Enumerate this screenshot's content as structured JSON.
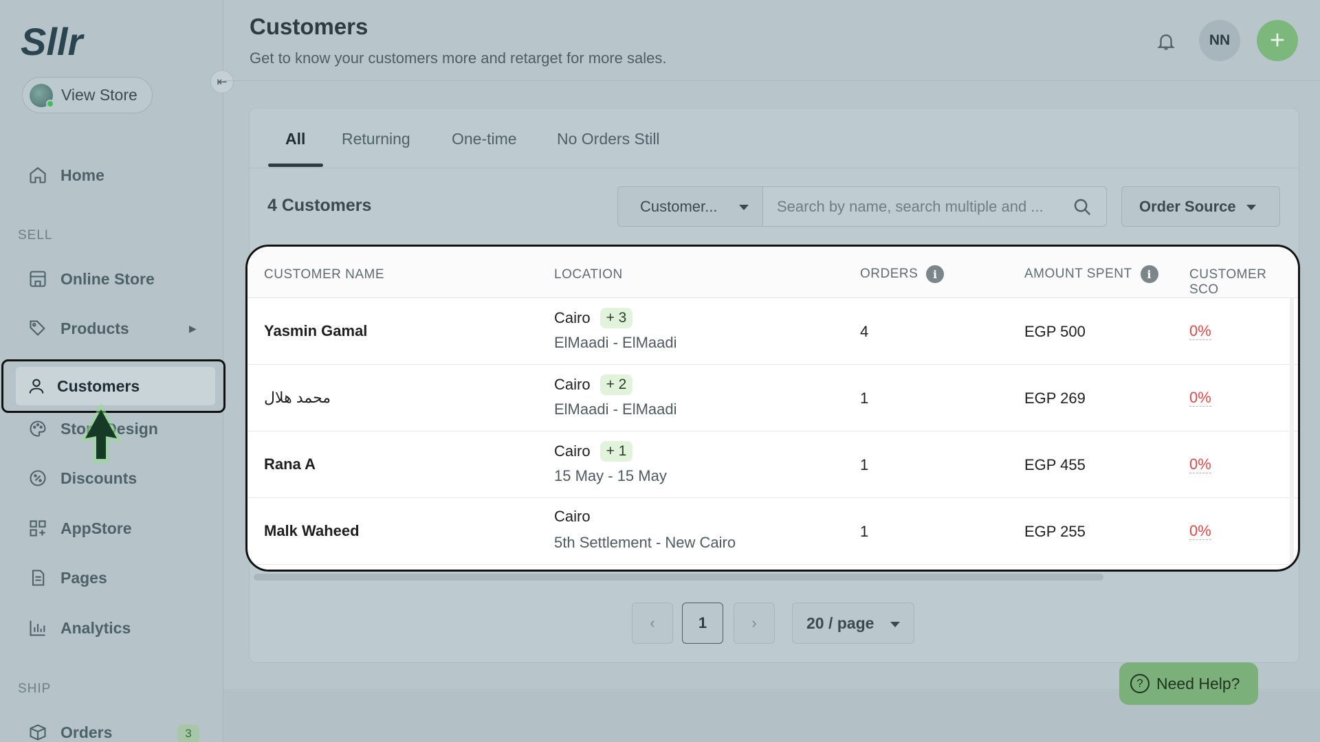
{
  "brand": {
    "logo_text": "Sllr"
  },
  "sidebar": {
    "view_store_label": "View Store",
    "sections": {
      "sell": "SELL",
      "ship": "SHIP"
    },
    "items": [
      {
        "label": "Home",
        "icon": "home-icon"
      },
      {
        "label": "Online Store",
        "icon": "store-icon"
      },
      {
        "label": "Products",
        "icon": "tag-icon"
      },
      {
        "label": "Customers",
        "icon": "user-icon",
        "active": true
      },
      {
        "label": "Store Design",
        "icon": "palette-icon"
      },
      {
        "label": "Discounts",
        "icon": "discount-icon"
      },
      {
        "label": "AppStore",
        "icon": "apps-icon"
      },
      {
        "label": "Pages",
        "icon": "page-icon"
      },
      {
        "label": "Analytics",
        "icon": "chart-icon"
      },
      {
        "label": "Orders",
        "icon": "box-icon",
        "badge": "3"
      }
    ]
  },
  "header": {
    "title": "Customers",
    "subtitle": "Get to know your customers more and retarget for more sales.",
    "avatar_initials": "NN"
  },
  "tabs": [
    "All",
    "Returning",
    "One-time",
    "No Orders Still"
  ],
  "toolbar": {
    "count_label": "4 Customers",
    "filter_value": "Customer...",
    "search_placeholder": "Search by name, search multiple and ...",
    "order_source_label": "Order Source"
  },
  "table": {
    "columns": [
      "CUSTOMER NAME",
      "LOCATION",
      "ORDERS",
      "AMOUNT SPENT",
      "CUSTOMER SCO"
    ],
    "rows": [
      {
        "name": "Yasmin Gamal",
        "city": "Cairo",
        "more": "+ 3",
        "area": "ElMaadi - ElMaadi",
        "orders": "4",
        "amount": "EGP 500",
        "score": "0%"
      },
      {
        "name": "محمد هلال",
        "city": "Cairo",
        "more": "+ 2",
        "area": "ElMaadi - ElMaadi",
        "orders": "1",
        "amount": "EGP 269",
        "score": "0%"
      },
      {
        "name": "Rana A",
        "city": "Cairo",
        "more": "+ 1",
        "area": "15 May - 15 May",
        "orders": "1",
        "amount": "EGP 455",
        "score": "0%"
      },
      {
        "name": "Malk Waheed",
        "city": "Cairo",
        "more": "",
        "area": "5th Settlement - New Cairo",
        "orders": "1",
        "amount": "EGP 255",
        "score": "0%"
      }
    ]
  },
  "pagination": {
    "current_page": "1",
    "per_page": "20 / page"
  },
  "help": {
    "label": "Need Help?"
  },
  "colors": {
    "accent_green": "#7cb87c",
    "score_red": "#e04848",
    "chip_green": "#e1f3da"
  }
}
